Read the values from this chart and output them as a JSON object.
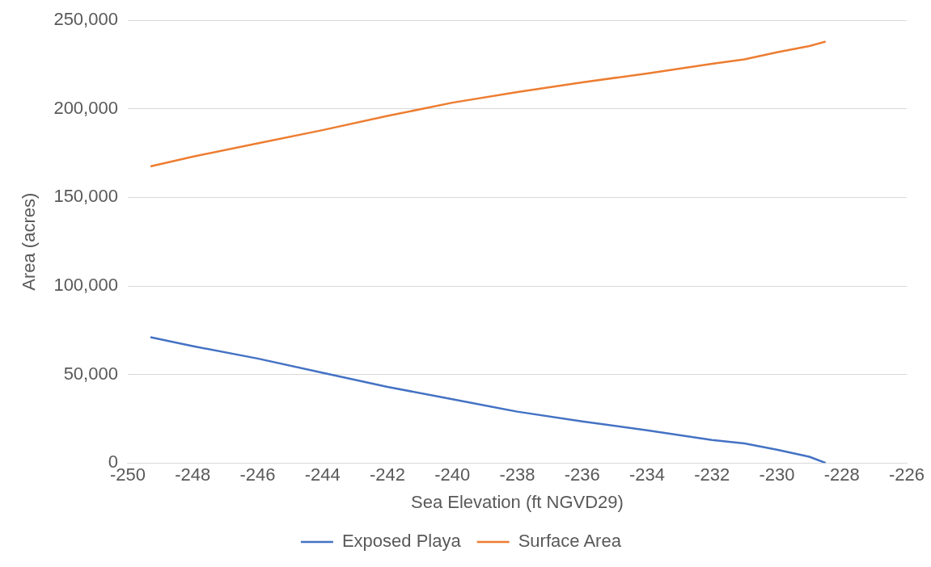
{
  "chart_data": {
    "type": "line",
    "xlabel": "Sea Elevation (ft NGVD29)",
    "ylabel": "Area (acres)",
    "xlim": [
      -250,
      -226
    ],
    "xticks": [
      -250,
      -248,
      -246,
      -244,
      -242,
      -240,
      -238,
      -236,
      -234,
      -232,
      -230,
      -228,
      -226
    ],
    "ylim": [
      0,
      250000
    ],
    "yticks": [
      {
        "value": 0,
        "label": "0"
      },
      {
        "value": 50000,
        "label": "50,000"
      },
      {
        "value": 100000,
        "label": "100,000"
      },
      {
        "value": 150000,
        "label": "150,000"
      },
      {
        "value": 200000,
        "label": "200,000"
      },
      {
        "value": 250000,
        "label": "250,000"
      }
    ],
    "grid": "y",
    "legend": "bottom",
    "marker": "none",
    "line_style": "solid",
    "series": [
      {
        "name": "Exposed Playa",
        "color": "#4472c4",
        "x": [
          -249.3,
          -248,
          -246,
          -244,
          -242,
          -240,
          -238,
          -236,
          -234,
          -232,
          -231,
          -230,
          -229,
          -228.5
        ],
        "values": [
          71000,
          66000,
          59000,
          51000,
          43000,
          36000,
          29000,
          23500,
          18500,
          13000,
          11000,
          7500,
          3500,
          0
        ]
      },
      {
        "name": "Surface Area",
        "color": "#ed7d31",
        "x": [
          -249.3,
          -248,
          -246,
          -244,
          -242,
          -240,
          -238,
          -236,
          -234,
          -232,
          -231,
          -230,
          -229,
          -228.5
        ],
        "values": [
          167500,
          173000,
          180500,
          188000,
          196000,
          203500,
          209500,
          215000,
          220000,
          225500,
          228000,
          232000,
          235500,
          238000
        ]
      }
    ]
  }
}
